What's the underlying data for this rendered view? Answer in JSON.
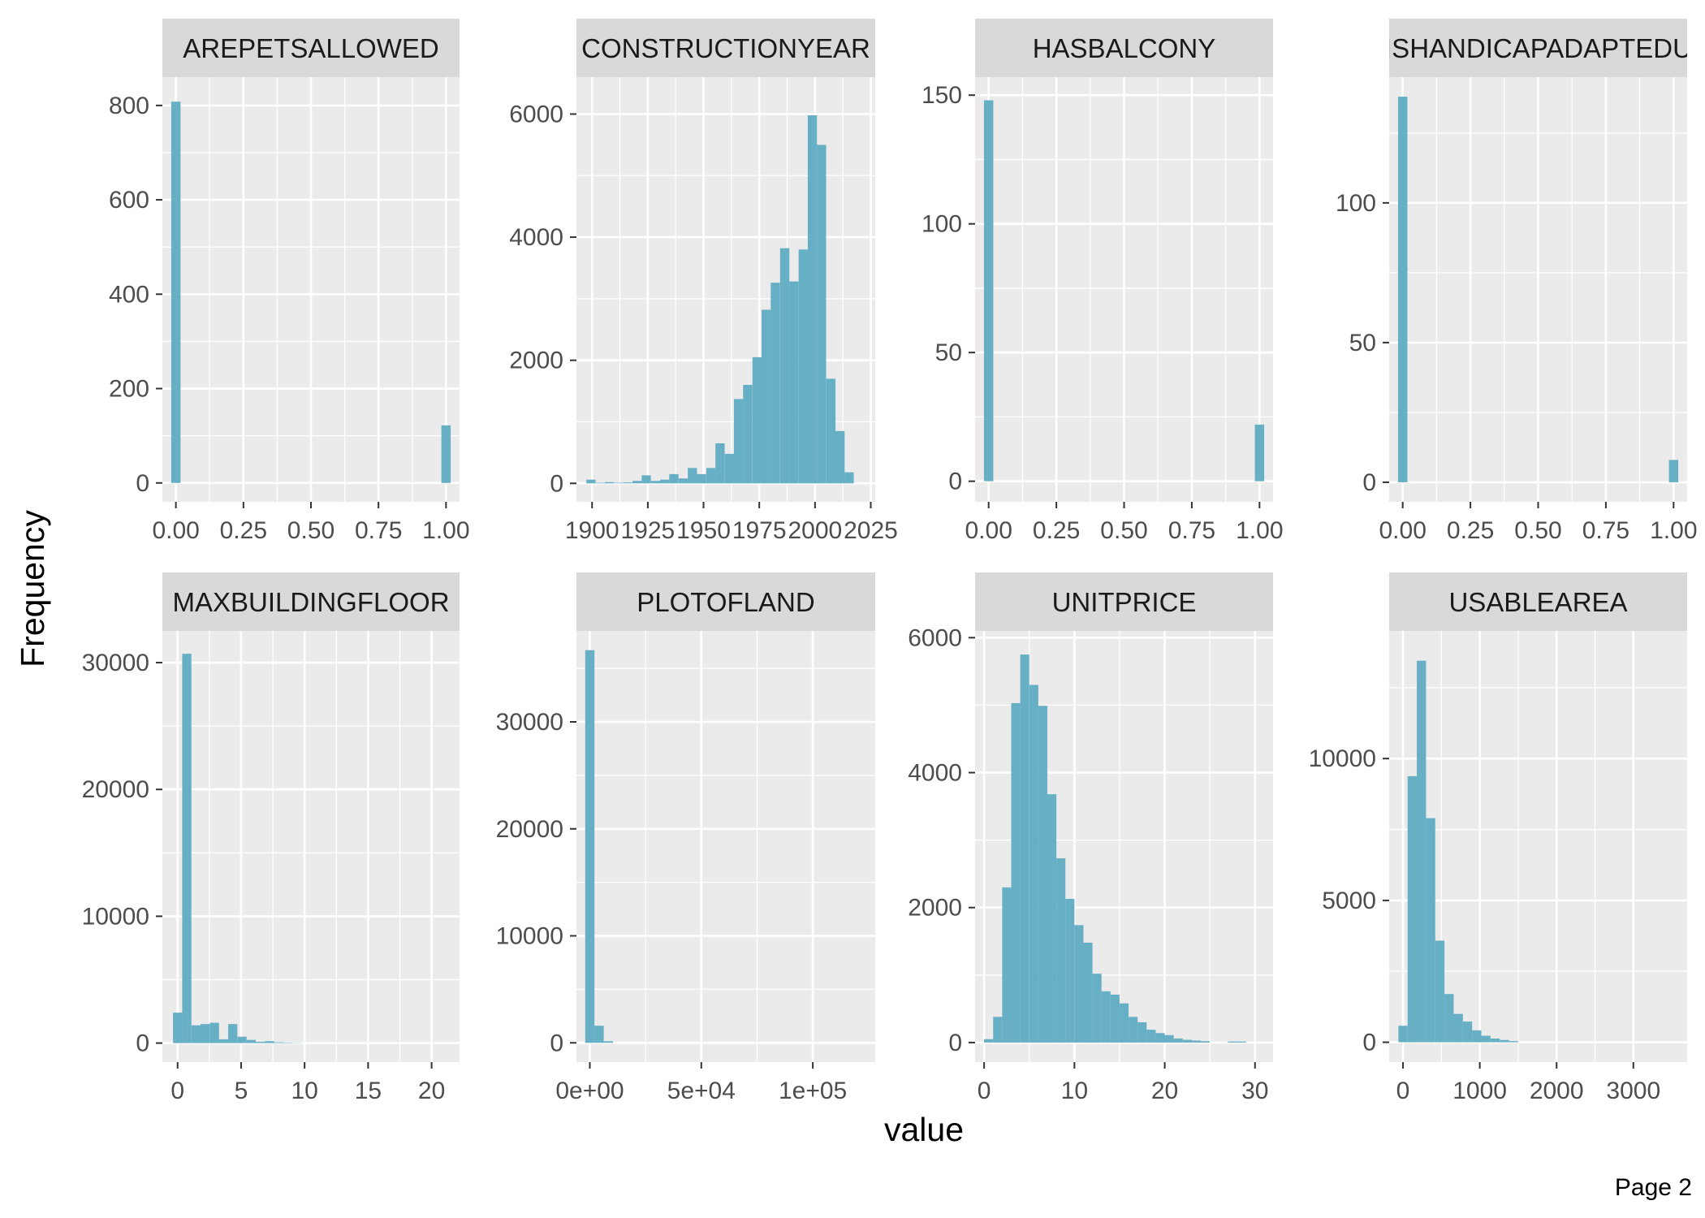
{
  "figure": {
    "xlabel": "value",
    "ylabel": "Frequency",
    "page_label": "Page 2",
    "bar_color": "#67AFC5",
    "panel_bg": "#EBEBEB",
    "strip_bg": "#D9D9D9",
    "grid_color": "#FFFFFF"
  },
  "chart_data": [
    {
      "type": "bar",
      "title": "AREPETSALLOWED",
      "xlim": [
        -0.05,
        1.05
      ],
      "ylim": [
        -40,
        860
      ],
      "xticks": [
        0,
        0.25,
        0.5,
        0.75,
        1
      ],
      "xtick_labels": [
        "0.00",
        "0.25",
        "0.50",
        "0.75",
        "1.00"
      ],
      "yticks": [
        0,
        200,
        400,
        600,
        800
      ],
      "ytick_labels": [
        "0",
        "200",
        "400",
        "600",
        "800"
      ],
      "bin_width": 0.0345,
      "bins": [
        {
          "x": 0,
          "count": 808
        },
        {
          "x": 1,
          "count": 122
        }
      ]
    },
    {
      "type": "bar",
      "title": "CONSTRUCTIONYEAR",
      "xlim": [
        1893,
        2027
      ],
      "ylim": [
        -300,
        6600
      ],
      "xticks": [
        1900,
        1925,
        1950,
        1975,
        2000,
        2025
      ],
      "xtick_labels": [
        "1900",
        "1925",
        "1950",
        "1975",
        "2000",
        "2025"
      ],
      "yticks": [
        0,
        2000,
        4000,
        6000
      ],
      "ytick_labels": [
        "0",
        "2000",
        "4000",
        "6000"
      ],
      "bin_width": 4.14,
      "bins": [
        {
          "x": 1899.5,
          "count": 60
        },
        {
          "x": 1903.6,
          "count": 10
        },
        {
          "x": 1907.8,
          "count": 20
        },
        {
          "x": 1911.9,
          "count": 10
        },
        {
          "x": 1916.0,
          "count": 15
        },
        {
          "x": 1920.2,
          "count": 40
        },
        {
          "x": 1924.3,
          "count": 130
        },
        {
          "x": 1928.5,
          "count": 40
        },
        {
          "x": 1932.6,
          "count": 60
        },
        {
          "x": 1936.7,
          "count": 150
        },
        {
          "x": 1940.9,
          "count": 80
        },
        {
          "x": 1945.0,
          "count": 250
        },
        {
          "x": 1949.1,
          "count": 150
        },
        {
          "x": 1953.3,
          "count": 250
        },
        {
          "x": 1957.4,
          "count": 650
        },
        {
          "x": 1961.6,
          "count": 480
        },
        {
          "x": 1965.7,
          "count": 1370
        },
        {
          "x": 1969.8,
          "count": 1600
        },
        {
          "x": 1974.0,
          "count": 2050
        },
        {
          "x": 1978.1,
          "count": 2820
        },
        {
          "x": 1982.2,
          "count": 3260
        },
        {
          "x": 1986.4,
          "count": 3820
        },
        {
          "x": 1990.5,
          "count": 3280
        },
        {
          "x": 1994.7,
          "count": 3800
        },
        {
          "x": 1998.8,
          "count": 5980
        },
        {
          "x": 2002.9,
          "count": 5500
        },
        {
          "x": 2007.1,
          "count": 1700
        },
        {
          "x": 2011.2,
          "count": 850
        },
        {
          "x": 2015.3,
          "count": 180
        }
      ]
    },
    {
      "type": "bar",
      "title": "HASBALCONY",
      "xlim": [
        -0.05,
        1.05
      ],
      "ylim": [
        -8,
        157
      ],
      "xticks": [
        0,
        0.25,
        0.5,
        0.75,
        1
      ],
      "xtick_labels": [
        "0.00",
        "0.25",
        "0.50",
        "0.75",
        "1.00"
      ],
      "yticks": [
        0,
        50,
        100,
        150
      ],
      "ytick_labels": [
        "0",
        "50",
        "100",
        "150"
      ],
      "bin_width": 0.0345,
      "bins": [
        {
          "x": 0,
          "count": 148
        },
        {
          "x": 1,
          "count": 22
        }
      ]
    },
    {
      "type": "bar",
      "title": "ISHANDICAPADAPTEDU",
      "xlim": [
        -0.05,
        1.05
      ],
      "ylim": [
        -7,
        145
      ],
      "xticks": [
        0,
        0.25,
        0.5,
        0.75,
        1
      ],
      "xtick_labels": [
        "0.00",
        "0.25",
        "0.50",
        "0.75",
        "1.00"
      ],
      "yticks": [
        0,
        50,
        100
      ],
      "ytick_labels": [
        "0",
        "50",
        "100"
      ],
      "bin_width": 0.0345,
      "bins": [
        {
          "x": 0,
          "count": 138
        },
        {
          "x": 1,
          "count": 8
        }
      ]
    },
    {
      "type": "bar",
      "title": "MAXBUILDINGFLOOR",
      "xlim": [
        -1.2,
        22.2
      ],
      "ylim": [
        -1500,
        32500
      ],
      "xticks": [
        0,
        5,
        10,
        15,
        20
      ],
      "xtick_labels": [
        "0",
        "5",
        "10",
        "15",
        "20"
      ],
      "yticks": [
        0,
        10000,
        20000,
        30000
      ],
      "ytick_labels": [
        "0",
        "10000",
        "20000",
        "30000"
      ],
      "bin_width": 0.724,
      "bins": [
        {
          "x": 0,
          "count": 2400
        },
        {
          "x": 0.724,
          "count": 30700
        },
        {
          "x": 1.45,
          "count": 1400
        },
        {
          "x": 2.17,
          "count": 1500
        },
        {
          "x": 2.9,
          "count": 1600
        },
        {
          "x": 3.62,
          "count": 300
        },
        {
          "x": 4.34,
          "count": 1500
        },
        {
          "x": 5.07,
          "count": 500
        },
        {
          "x": 5.79,
          "count": 250
        },
        {
          "x": 6.52,
          "count": 100
        },
        {
          "x": 7.24,
          "count": 150
        },
        {
          "x": 7.97,
          "count": 60
        },
        {
          "x": 8.69,
          "count": 40
        },
        {
          "x": 9.41,
          "count": 20
        }
      ]
    },
    {
      "type": "bar",
      "title": "PLOTOFLAND",
      "xlim": [
        -6000,
        128000
      ],
      "ylim": [
        -1800,
        38500
      ],
      "xticks": [
        0,
        50000,
        100000
      ],
      "xtick_labels": [
        "0e+00",
        "5e+04",
        "1e+05"
      ],
      "yticks": [
        0,
        10000,
        20000,
        30000
      ],
      "ytick_labels": [
        "0",
        "10000",
        "20000",
        "30000"
      ],
      "bin_width": 4150,
      "bins": [
        {
          "x": 0,
          "count": 36700
        },
        {
          "x": 4150,
          "count": 1600
        },
        {
          "x": 8300,
          "count": 150
        }
      ]
    },
    {
      "type": "bar",
      "title": "UNITPRICE",
      "xlim": [
        -1,
        32
      ],
      "ylim": [
        -290,
        6100
      ],
      "xticks": [
        0,
        10,
        20,
        30
      ],
      "xtick_labels": [
        "0",
        "10",
        "20",
        "30"
      ],
      "yticks": [
        0,
        2000,
        4000,
        6000
      ],
      "ytick_labels": [
        "0",
        "2000",
        "4000",
        "6000"
      ],
      "bin_width": 1.0,
      "bins": [
        {
          "x": 0.5,
          "count": 50
        },
        {
          "x": 1.5,
          "count": 380
        },
        {
          "x": 2.5,
          "count": 2300
        },
        {
          "x": 3.5,
          "count": 5030
        },
        {
          "x": 4.5,
          "count": 5750
        },
        {
          "x": 5.5,
          "count": 5300
        },
        {
          "x": 6.5,
          "count": 4990
        },
        {
          "x": 7.5,
          "count": 3680
        },
        {
          "x": 8.5,
          "count": 2730
        },
        {
          "x": 9.5,
          "count": 2130
        },
        {
          "x": 10.5,
          "count": 1740
        },
        {
          "x": 11.5,
          "count": 1480
        },
        {
          "x": 12.5,
          "count": 1020
        },
        {
          "x": 13.5,
          "count": 760
        },
        {
          "x": 14.5,
          "count": 710
        },
        {
          "x": 15.5,
          "count": 580
        },
        {
          "x": 16.5,
          "count": 380
        },
        {
          "x": 17.5,
          "count": 300
        },
        {
          "x": 18.5,
          "count": 190
        },
        {
          "x": 19.5,
          "count": 140
        },
        {
          "x": 20.5,
          "count": 110
        },
        {
          "x": 21.5,
          "count": 60
        },
        {
          "x": 22.5,
          "count": 40
        },
        {
          "x": 23.5,
          "count": 30
        },
        {
          "x": 24.5,
          "count": 20
        },
        {
          "x": 27.5,
          "count": 15
        },
        {
          "x": 28.5,
          "count": 15
        }
      ]
    },
    {
      "type": "bar",
      "title": "USABLEAREA",
      "xlim": [
        -180,
        3700
      ],
      "ylim": [
        -700,
        14500
      ],
      "xticks": [
        0,
        1000,
        2000,
        3000
      ],
      "xtick_labels": [
        "0",
        "1000",
        "2000",
        "3000"
      ],
      "yticks": [
        0,
        5000,
        10000
      ],
      "ytick_labels": [
        "0",
        "5000",
        "10000"
      ],
      "bin_width": 120,
      "bins": [
        {
          "x": 0,
          "count": 580
        },
        {
          "x": 120,
          "count": 9380
        },
        {
          "x": 240,
          "count": 13450
        },
        {
          "x": 360,
          "count": 7900
        },
        {
          "x": 480,
          "count": 3580
        },
        {
          "x": 600,
          "count": 1700
        },
        {
          "x": 720,
          "count": 1000
        },
        {
          "x": 840,
          "count": 730
        },
        {
          "x": 960,
          "count": 420
        },
        {
          "x": 1080,
          "count": 230
        },
        {
          "x": 1200,
          "count": 130
        },
        {
          "x": 1320,
          "count": 80
        },
        {
          "x": 1440,
          "count": 40
        }
      ]
    }
  ]
}
